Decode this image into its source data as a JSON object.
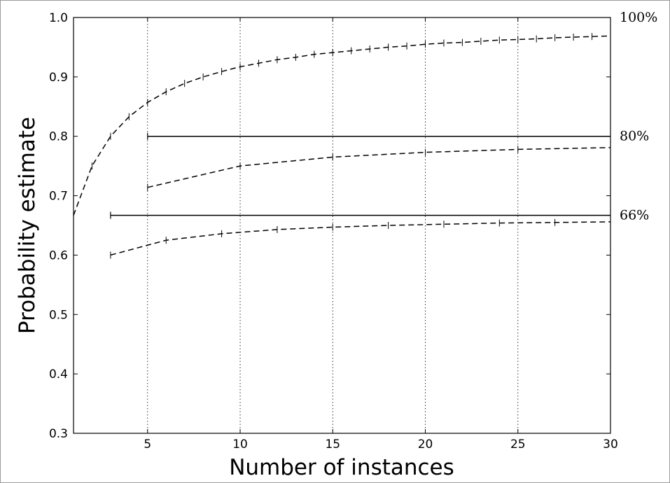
{
  "chart_data": {
    "type": "line",
    "title": "",
    "xlabel": "Number of instances",
    "ylabel": "Probability estimate",
    "xlim": [
      1,
      30
    ],
    "ylim": [
      0.3,
      1.0
    ],
    "xticks": [
      5,
      10,
      15,
      20,
      25,
      30
    ],
    "xtick_labels": [
      "5",
      "10",
      "15",
      "20",
      "25",
      "30"
    ],
    "yticks": [
      0.3,
      0.4,
      0.5,
      0.6,
      0.7,
      0.8,
      0.9,
      1.0
    ],
    "ytick_labels": [
      "0.3",
      "0.4",
      "0.5",
      "0.6",
      "0.7",
      "0.8",
      "0.9",
      "1.0"
    ],
    "grid": "vertical dotted at x ticks",
    "reference_lines": [
      {
        "label": "100%",
        "y": 1.0,
        "x_start": 30,
        "x_end": 30
      },
      {
        "label": "80%",
        "y": 0.8,
        "x_start": 5,
        "x_end": 30
      },
      {
        "label": "66%",
        "y": 0.667,
        "x_start": 3,
        "x_end": 30
      }
    ],
    "series": [
      {
        "style": "dashed",
        "x": [
          1,
          2,
          3,
          4,
          5,
          6,
          7,
          8,
          9,
          10,
          11,
          12,
          13,
          14,
          15,
          16,
          17,
          18,
          19,
          20,
          21,
          22,
          23,
          24,
          25,
          26,
          27,
          28,
          29,
          30
        ],
        "y": [
          0.667,
          0.75,
          0.8,
          0.833,
          0.857,
          0.875,
          0.889,
          0.9,
          0.909,
          0.917,
          0.923,
          0.929,
          0.933,
          0.938,
          0.941,
          0.944,
          0.947,
          0.95,
          0.952,
          0.955,
          0.957,
          0.958,
          0.96,
          0.962,
          0.963,
          0.964,
          0.966,
          0.967,
          0.968,
          0.969
        ]
      },
      {
        "style": "dashed",
        "x": [
          5,
          10,
          15,
          20,
          25,
          30
        ],
        "y": [
          0.714,
          0.75,
          0.765,
          0.773,
          0.778,
          0.781
        ]
      },
      {
        "style": "dashed",
        "x": [
          3,
          6,
          9,
          12,
          15,
          18,
          21,
          24,
          27,
          30
        ],
        "y": [
          0.6,
          0.625,
          0.636,
          0.643,
          0.647,
          0.65,
          0.652,
          0.654,
          0.655,
          0.656
        ]
      }
    ]
  }
}
